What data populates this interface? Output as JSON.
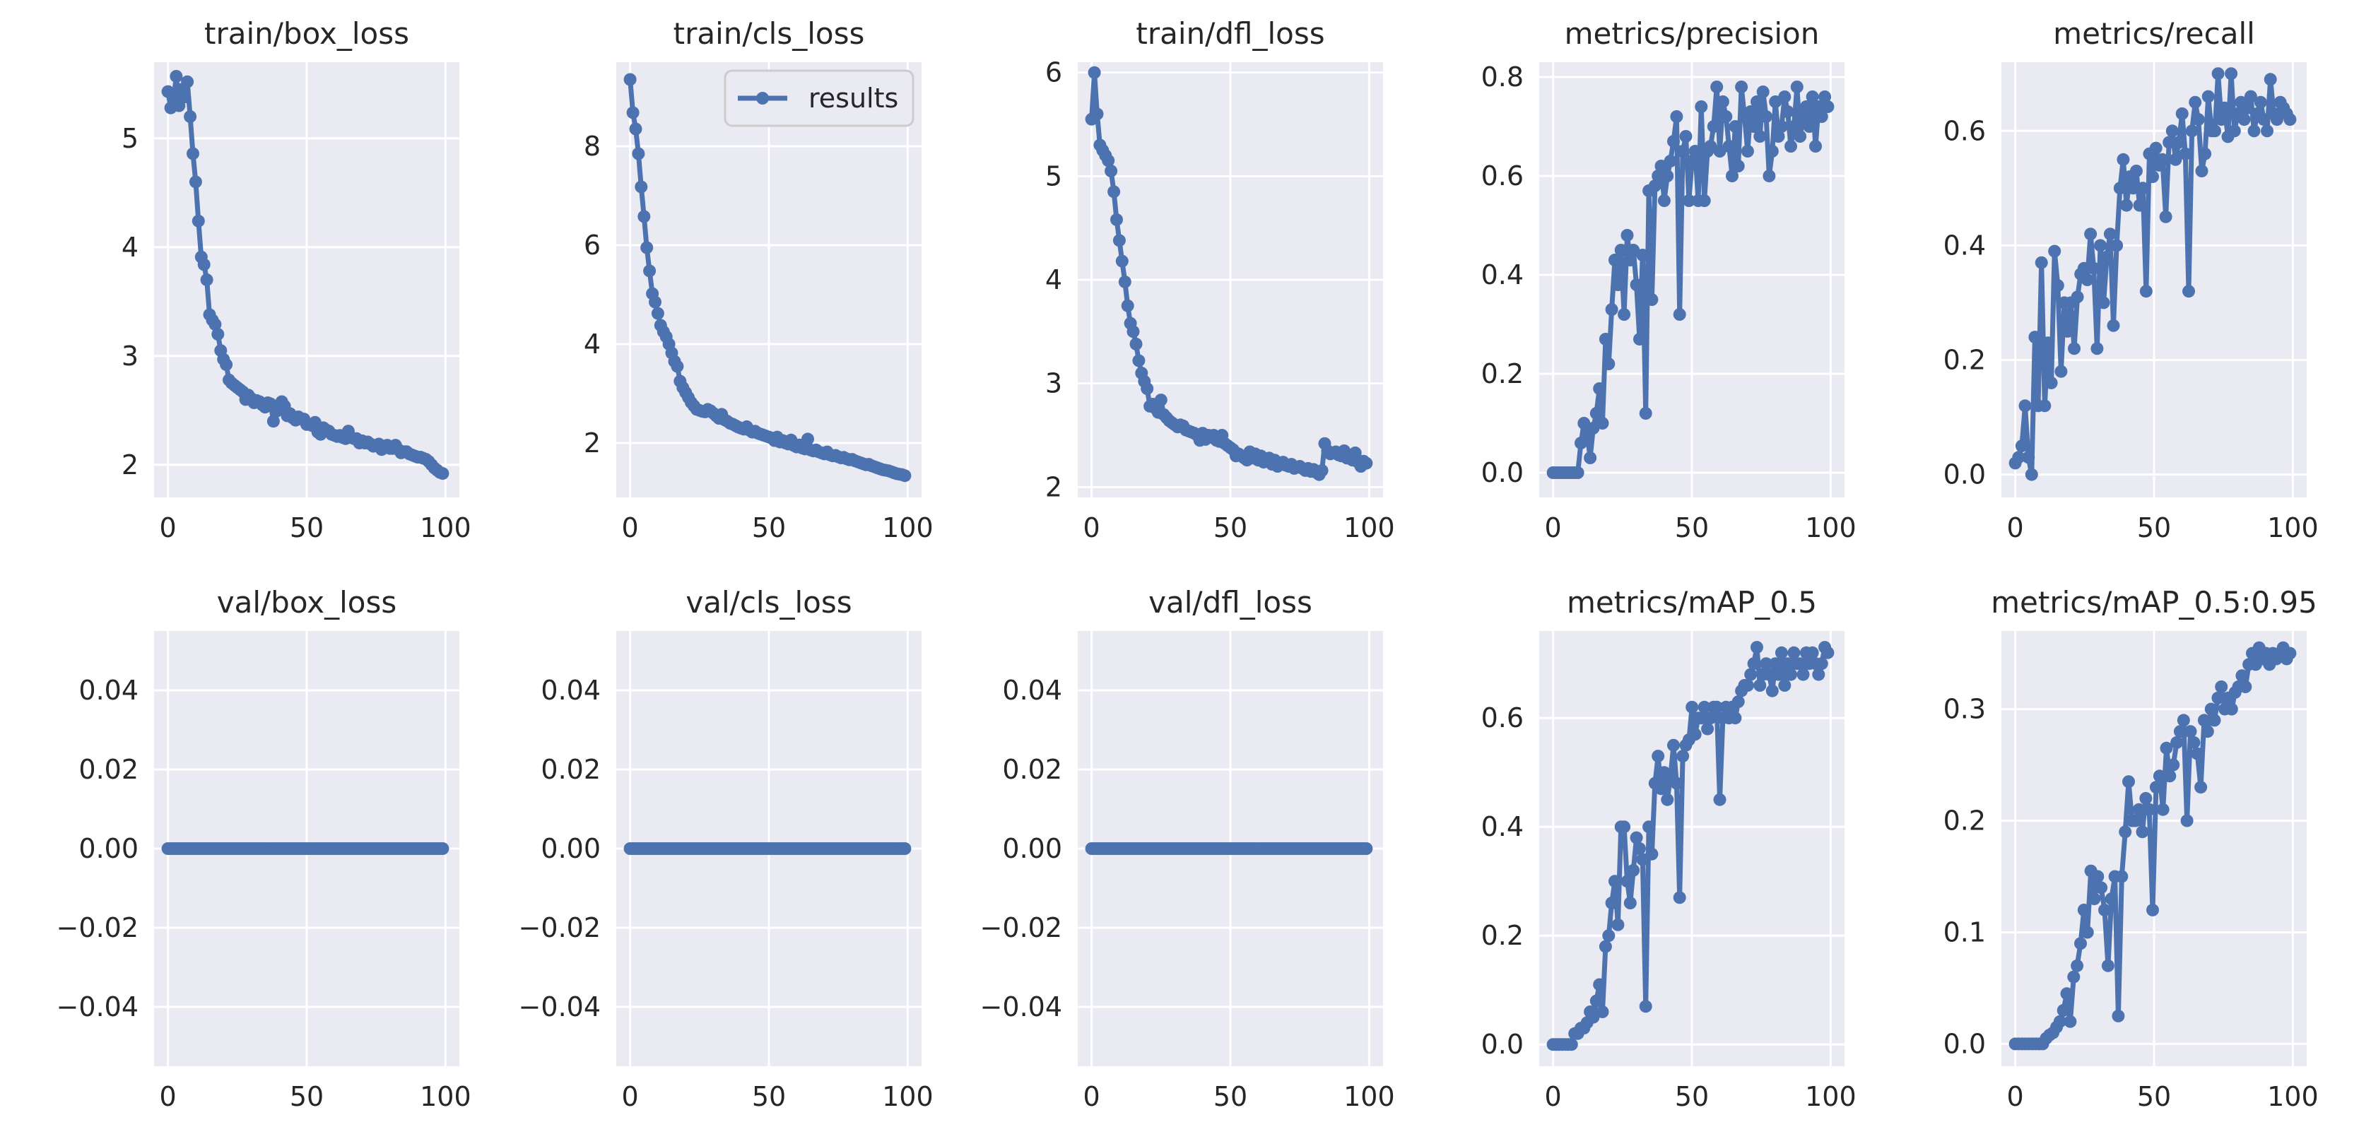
{
  "chart_data": [
    {
      "type": "line",
      "title": "train/box_loss",
      "xlim": [
        -5,
        105
      ],
      "ylim": [
        1.7,
        5.7
      ],
      "xticks": [
        {
          "v": 0,
          "label": "0"
        },
        {
          "v": 50,
          "label": "50"
        },
        {
          "v": 100,
          "label": "100"
        }
      ],
      "yticks": [
        {
          "v": 2,
          "label": "2"
        },
        {
          "v": 3,
          "label": "3"
        },
        {
          "v": 4,
          "label": "4"
        },
        {
          "v": 5,
          "label": "5"
        }
      ],
      "series": [
        {
          "name": "results",
          "values": [
            5.43,
            5.28,
            5.35,
            5.57,
            5.3,
            5.45,
            5.38,
            5.52,
            5.2,
            4.86,
            4.6,
            4.24,
            3.91,
            3.84,
            3.7,
            3.38,
            3.33,
            3.29,
            3.2,
            3.05,
            2.97,
            2.92,
            2.78,
            2.75,
            2.73,
            2.71,
            2.69,
            2.67,
            2.6,
            2.64,
            2.61,
            2.57,
            2.59,
            2.58,
            2.55,
            2.53,
            2.57,
            2.56,
            2.4,
            2.49,
            2.51,
            2.58,
            2.54,
            2.45,
            2.47,
            2.43,
            2.41,
            2.44,
            2.42,
            2.42,
            2.37,
            2.37,
            2.36,
            2.39,
            2.3,
            2.28,
            2.34,
            2.32,
            2.31,
            2.28,
            2.27,
            2.26,
            2.27,
            2.25,
            2.24,
            2.31,
            2.25,
            2.24,
            2.24,
            2.2,
            2.22,
            2.2,
            2.21,
            2.19,
            2.17,
            2.18,
            2.19,
            2.14,
            2.17,
            2.18,
            2.15,
            2.15,
            2.18,
            2.14,
            2.11,
            2.12,
            2.12,
            2.1,
            2.09,
            2.08,
            2.07,
            2.07,
            2.06,
            2.05,
            2.03,
            2.0,
            1.97,
            1.95,
            1.93,
            1.92
          ]
        }
      ]
    },
    {
      "type": "line",
      "title": "train/cls_loss",
      "xlim": [
        -5,
        105
      ],
      "ylim": [
        0.9,
        9.7
      ],
      "xticks": [
        {
          "v": 0,
          "label": "0"
        },
        {
          "v": 50,
          "label": "50"
        },
        {
          "v": 100,
          "label": "100"
        }
      ],
      "yticks": [
        {
          "v": 2,
          "label": "2"
        },
        {
          "v": 4,
          "label": "4"
        },
        {
          "v": 6,
          "label": "6"
        },
        {
          "v": 8,
          "label": "8"
        }
      ],
      "legend": {
        "label": "results",
        "position": "top-right"
      },
      "series": [
        {
          "name": "results",
          "values": [
            9.35,
            8.68,
            8.35,
            7.85,
            7.18,
            6.58,
            5.95,
            5.48,
            5.02,
            4.85,
            4.62,
            4.38,
            4.25,
            4.15,
            4.0,
            3.82,
            3.65,
            3.55,
            3.25,
            3.12,
            3.02,
            2.92,
            2.82,
            2.75,
            2.68,
            2.66,
            2.64,
            2.63,
            2.68,
            2.65,
            2.6,
            2.55,
            2.5,
            2.58,
            2.47,
            2.44,
            2.4,
            2.38,
            2.35,
            2.32,
            2.3,
            2.28,
            2.33,
            2.26,
            2.22,
            2.24,
            2.2,
            2.18,
            2.16,
            2.14,
            2.12,
            2.1,
            2.05,
            2.12,
            2.02,
            2.05,
            2.0,
            1.98,
            2.06,
            1.95,
            1.92,
            1.96,
            1.9,
            1.88,
            2.08,
            1.86,
            1.84,
            1.86,
            1.82,
            1.8,
            1.78,
            1.82,
            1.76,
            1.74,
            1.75,
            1.72,
            1.7,
            1.71,
            1.68,
            1.66,
            1.67,
            1.64,
            1.62,
            1.6,
            1.58,
            1.56,
            1.57,
            1.54,
            1.52,
            1.5,
            1.48,
            1.46,
            1.45,
            1.44,
            1.42,
            1.4,
            1.38,
            1.37,
            1.36,
            1.34
          ]
        }
      ]
    },
    {
      "type": "line",
      "title": "train/dfl_loss",
      "xlim": [
        -5,
        105
      ],
      "ylim": [
        1.9,
        6.1
      ],
      "xticks": [
        {
          "v": 0,
          "label": "0"
        },
        {
          "v": 50,
          "label": "50"
        },
        {
          "v": 100,
          "label": "100"
        }
      ],
      "yticks": [
        {
          "v": 2,
          "label": "2"
        },
        {
          "v": 3,
          "label": "3"
        },
        {
          "v": 4,
          "label": "4"
        },
        {
          "v": 5,
          "label": "5"
        },
        {
          "v": 6,
          "label": "6"
        }
      ],
      "series": [
        {
          "name": "results",
          "values": [
            5.55,
            6.0,
            5.6,
            5.3,
            5.25,
            5.2,
            5.15,
            5.05,
            4.85,
            4.58,
            4.38,
            4.18,
            3.98,
            3.75,
            3.58,
            3.5,
            3.38,
            3.22,
            3.1,
            3.02,
            2.95,
            2.78,
            2.8,
            2.76,
            2.72,
            2.84,
            2.7,
            2.67,
            2.64,
            2.62,
            2.6,
            2.58,
            2.6,
            2.59,
            2.55,
            2.54,
            2.53,
            2.52,
            2.5,
            2.45,
            2.52,
            2.46,
            2.5,
            2.48,
            2.5,
            2.45,
            2.44,
            2.5,
            2.42,
            2.4,
            2.38,
            2.36,
            2.3,
            2.32,
            2.3,
            2.28,
            2.26,
            2.34,
            2.28,
            2.32,
            2.26,
            2.3,
            2.24,
            2.25,
            2.28,
            2.22,
            2.26,
            2.2,
            2.22,
            2.24,
            2.21,
            2.2,
            2.22,
            2.18,
            2.19,
            2.2,
            2.18,
            2.16,
            2.18,
            2.15,
            2.17,
            2.14,
            2.12,
            2.16,
            2.42,
            2.35,
            2.32,
            2.33,
            2.34,
            2.31,
            2.3,
            2.35,
            2.28,
            2.3,
            2.26,
            2.33,
            2.24,
            2.2,
            2.25,
            2.23
          ]
        }
      ]
    },
    {
      "type": "line",
      "title": "metrics/precision",
      "xlim": [
        -5,
        105
      ],
      "ylim": [
        -0.05,
        0.83
      ],
      "xticks": [
        {
          "v": 0,
          "label": "0"
        },
        {
          "v": 50,
          "label": "50"
        },
        {
          "v": 100,
          "label": "100"
        }
      ],
      "yticks": [
        {
          "v": 0,
          "label": "0.0"
        },
        {
          "v": 0.2,
          "label": "0.2"
        },
        {
          "v": 0.4,
          "label": "0.4"
        },
        {
          "v": 0.6,
          "label": "0.6"
        },
        {
          "v": 0.8,
          "label": "0.8"
        }
      ],
      "series": [
        {
          "name": "results",
          "values": [
            0.0,
            0.0,
            0.0,
            0.0,
            0.0,
            0.0,
            0.0,
            0.0,
            0.0,
            0.06,
            0.1,
            0.08,
            0.03,
            0.09,
            0.12,
            0.17,
            0.1,
            0.27,
            0.22,
            0.33,
            0.43,
            0.38,
            0.45,
            0.32,
            0.48,
            0.43,
            0.45,
            0.38,
            0.27,
            0.44,
            0.12,
            0.57,
            0.35,
            0.58,
            0.6,
            0.62,
            0.55,
            0.6,
            0.63,
            0.67,
            0.72,
            0.32,
            0.65,
            0.68,
            0.55,
            0.63,
            0.65,
            0.55,
            0.74,
            0.55,
            0.65,
            0.66,
            0.7,
            0.78,
            0.65,
            0.75,
            0.72,
            0.66,
            0.6,
            0.7,
            0.62,
            0.78,
            0.72,
            0.65,
            0.73,
            0.7,
            0.75,
            0.68,
            0.77,
            0.72,
            0.6,
            0.65,
            0.75,
            0.68,
            0.7,
            0.76,
            0.73,
            0.66,
            0.7,
            0.78,
            0.68,
            0.72,
            0.74,
            0.7,
            0.76,
            0.66,
            0.74,
            0.72,
            0.76,
            0.74
          ]
        }
      ]
    },
    {
      "type": "line",
      "title": "metrics/recall",
      "xlim": [
        -5,
        105
      ],
      "ylim": [
        -0.04,
        0.72
      ],
      "xticks": [
        {
          "v": 0,
          "label": "0"
        },
        {
          "v": 50,
          "label": "50"
        },
        {
          "v": 100,
          "label": "100"
        }
      ],
      "yticks": [
        {
          "v": 0,
          "label": "0.0"
        },
        {
          "v": 0.2,
          "label": "0.2"
        },
        {
          "v": 0.4,
          "label": "0.4"
        },
        {
          "v": 0.6,
          "label": "0.6"
        }
      ],
      "series": [
        {
          "name": "results",
          "values": [
            0.02,
            0.03,
            0.05,
            0.12,
            0.03,
            0.0,
            0.24,
            0.12,
            0.37,
            0.12,
            0.23,
            0.16,
            0.39,
            0.33,
            0.18,
            0.3,
            0.25,
            0.3,
            0.22,
            0.31,
            0.35,
            0.36,
            0.34,
            0.42,
            0.36,
            0.22,
            0.4,
            0.3,
            0.38,
            0.42,
            0.26,
            0.4,
            0.5,
            0.55,
            0.47,
            0.52,
            0.5,
            0.53,
            0.47,
            0.5,
            0.32,
            0.56,
            0.52,
            0.57,
            0.54,
            0.55,
            0.45,
            0.58,
            0.6,
            0.55,
            0.58,
            0.63,
            0.56,
            0.32,
            0.6,
            0.65,
            0.62,
            0.53,
            0.56,
            0.66,
            0.6,
            0.6,
            0.7,
            0.62,
            0.64,
            0.59,
            0.7,
            0.6,
            0.63,
            0.65,
            0.62,
            0.64,
            0.66,
            0.6,
            0.63,
            0.65,
            0.62,
            0.6,
            0.69,
            0.63,
            0.62,
            0.65,
            0.64,
            0.63,
            0.62
          ]
        }
      ]
    },
    {
      "type": "line",
      "title": "val/box_loss",
      "xlim": [
        -5,
        105
      ],
      "ylim": [
        -0.055,
        0.055
      ],
      "xticks": [
        {
          "v": 0,
          "label": "0"
        },
        {
          "v": 50,
          "label": "50"
        },
        {
          "v": 100,
          "label": "100"
        }
      ],
      "yticks": [
        {
          "v": -0.04,
          "label": "−0.04"
        },
        {
          "v": -0.02,
          "label": "−0.02"
        },
        {
          "v": 0,
          "label": "0.00"
        },
        {
          "v": 0.02,
          "label": "0.02"
        },
        {
          "v": 0.04,
          "label": "0.04"
        }
      ],
      "series": [
        {
          "name": "results",
          "constant": 0,
          "count": 100
        }
      ]
    },
    {
      "type": "line",
      "title": "val/cls_loss",
      "xlim": [
        -5,
        105
      ],
      "ylim": [
        -0.055,
        0.055
      ],
      "xticks": [
        {
          "v": 0,
          "label": "0"
        },
        {
          "v": 50,
          "label": "50"
        },
        {
          "v": 100,
          "label": "100"
        }
      ],
      "yticks": [
        {
          "v": -0.04,
          "label": "−0.04"
        },
        {
          "v": -0.02,
          "label": "−0.02"
        },
        {
          "v": 0,
          "label": "0.00"
        },
        {
          "v": 0.02,
          "label": "0.02"
        },
        {
          "v": 0.04,
          "label": "0.04"
        }
      ],
      "series": [
        {
          "name": "results",
          "constant": 0,
          "count": 100
        }
      ]
    },
    {
      "type": "line",
      "title": "val/dfl_loss",
      "xlim": [
        -5,
        105
      ],
      "ylim": [
        -0.055,
        0.055
      ],
      "xticks": [
        {
          "v": 0,
          "label": "0"
        },
        {
          "v": 50,
          "label": "50"
        },
        {
          "v": 100,
          "label": "100"
        }
      ],
      "yticks": [
        {
          "v": -0.04,
          "label": "−0.04"
        },
        {
          "v": -0.02,
          "label": "−0.02"
        },
        {
          "v": 0,
          "label": "0.00"
        },
        {
          "v": 0.02,
          "label": "0.02"
        },
        {
          "v": 0.04,
          "label": "0.04"
        }
      ],
      "series": [
        {
          "name": "results",
          "constant": 0,
          "count": 100
        }
      ]
    },
    {
      "type": "line",
      "title": "metrics/mAP_0.5",
      "xlim": [
        -5,
        105
      ],
      "ylim": [
        -0.04,
        0.76
      ],
      "xticks": [
        {
          "v": 0,
          "label": "0"
        },
        {
          "v": 50,
          "label": "50"
        },
        {
          "v": 100,
          "label": "100"
        }
      ],
      "yticks": [
        {
          "v": 0,
          "label": "0.0"
        },
        {
          "v": 0.2,
          "label": "0.2"
        },
        {
          "v": 0.4,
          "label": "0.4"
        },
        {
          "v": 0.6,
          "label": "0.6"
        }
      ],
      "series": [
        {
          "name": "results",
          "values": [
            0.0,
            0.0,
            0.0,
            0.0,
            0.0,
            0.0,
            0.0,
            0.02,
            0.02,
            0.03,
            0.03,
            0.04,
            0.06,
            0.05,
            0.08,
            0.11,
            0.06,
            0.18,
            0.2,
            0.26,
            0.3,
            0.22,
            0.4,
            0.4,
            0.3,
            0.26,
            0.32,
            0.38,
            0.36,
            0.34,
            0.07,
            0.4,
            0.35,
            0.48,
            0.53,
            0.47,
            0.5,
            0.45,
            0.49,
            0.55,
            0.48,
            0.27,
            0.53,
            0.55,
            0.56,
            0.62,
            0.57,
            0.6,
            0.6,
            0.62,
            0.58,
            0.6,
            0.62,
            0.62,
            0.45,
            0.6,
            0.62,
            0.6,
            0.62,
            0.6,
            0.63,
            0.65,
            0.66,
            0.66,
            0.68,
            0.7,
            0.73,
            0.66,
            0.68,
            0.7,
            0.68,
            0.65,
            0.7,
            0.68,
            0.72,
            0.66,
            0.7,
            0.68,
            0.72,
            0.7,
            0.7,
            0.68,
            0.72,
            0.7,
            0.72,
            0.7,
            0.68,
            0.7,
            0.73,
            0.72
          ]
        }
      ]
    },
    {
      "type": "line",
      "title": "metrics/mAP_0.5:0.95",
      "xlim": [
        -5,
        105
      ],
      "ylim": [
        -0.02,
        0.37
      ],
      "xticks": [
        {
          "v": 0,
          "label": "0"
        },
        {
          "v": 50,
          "label": "50"
        },
        {
          "v": 100,
          "label": "100"
        }
      ],
      "yticks": [
        {
          "v": 0,
          "label": "0.0"
        },
        {
          "v": 0.1,
          "label": "0.1"
        },
        {
          "v": 0.2,
          "label": "0.2"
        },
        {
          "v": 0.3,
          "label": "0.3"
        }
      ],
      "series": [
        {
          "name": "results",
          "values": [
            0.0,
            0.0,
            0.0,
            0.0,
            0.0,
            0.0,
            0.0,
            0.0,
            0.0,
            0.005,
            0.008,
            0.01,
            0.015,
            0.02,
            0.03,
            0.045,
            0.02,
            0.06,
            0.07,
            0.09,
            0.12,
            0.1,
            0.155,
            0.13,
            0.15,
            0.14,
            0.12,
            0.07,
            0.13,
            0.15,
            0.025,
            0.15,
            0.19,
            0.235,
            0.2,
            0.2,
            0.21,
            0.19,
            0.22,
            0.21,
            0.12,
            0.23,
            0.24,
            0.21,
            0.265,
            0.24,
            0.25,
            0.27,
            0.28,
            0.29,
            0.2,
            0.28,
            0.27,
            0.26,
            0.23,
            0.29,
            0.28,
            0.3,
            0.29,
            0.31,
            0.32,
            0.3,
            0.31,
            0.3,
            0.315,
            0.32,
            0.33,
            0.32,
            0.34,
            0.35,
            0.34,
            0.355,
            0.345,
            0.35,
            0.34,
            0.35,
            0.345,
            0.35,
            0.355,
            0.345,
            0.35
          ]
        }
      ]
    }
  ]
}
